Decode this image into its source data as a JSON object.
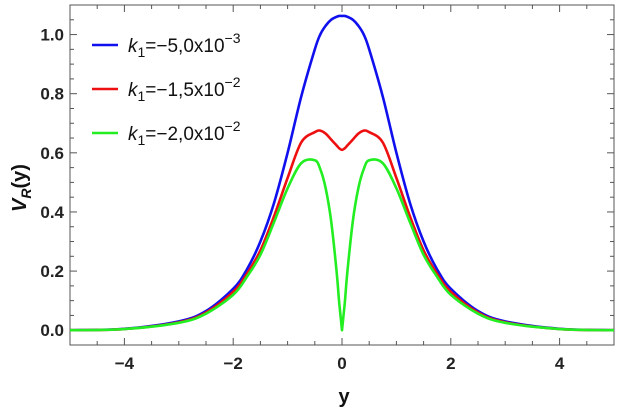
{
  "chart_data": {
    "type": "line",
    "xlabel": "y",
    "ylabel_main": "V",
    "ylabel_sub": "R",
    "ylabel_arg": "(y)",
    "xlim": [
      -5,
      5
    ],
    "ylim": [
      -0.05,
      1.1
    ],
    "xticks": [
      -4,
      -2,
      0,
      2,
      4
    ],
    "xtick_labels": [
      "−4",
      "−2",
      "0",
      "2",
      "4"
    ],
    "yticks": [
      0.0,
      0.2,
      0.4,
      0.6,
      0.8,
      1.0
    ],
    "ytick_labels": [
      "0.0",
      "0.2",
      "0.4",
      "0.6",
      "0.8",
      "1.0"
    ],
    "legend_placement": "top-left",
    "x": [
      -5.0,
      -4.0,
      -3.0,
      -2.5,
      -2.0,
      -1.75,
      -1.5,
      -1.25,
      -1.0,
      -0.75,
      -0.5,
      -0.4,
      -0.3,
      -0.2,
      -0.1,
      -0.05,
      0.0,
      0.05,
      0.1,
      0.2,
      0.3,
      0.4,
      0.5,
      0.75,
      1.0,
      1.25,
      1.5,
      1.75,
      2.0,
      2.5,
      3.0,
      4.0,
      5.0
    ],
    "series": [
      {
        "legend_var": "k",
        "legend_sub": "1",
        "legend_value": "=−5,0x10",
        "legend_exp": "−3",
        "color": "#1010ee",
        "values": [
          0.0,
          0.005,
          0.03,
          0.065,
          0.14,
          0.205,
          0.3,
          0.43,
          0.6,
          0.79,
          0.95,
          1.0,
          1.03,
          1.05,
          1.06,
          1.063,
          1.063,
          1.063,
          1.06,
          1.05,
          1.03,
          1.0,
          0.95,
          0.79,
          0.6,
          0.43,
          0.3,
          0.205,
          0.14,
          0.065,
          0.03,
          0.005,
          0.0
        ]
      },
      {
        "legend_var": "k",
        "legend_sub": "1",
        "legend_value": "=−1,5x10",
        "legend_exp": "−2",
        "color": "#ee1010",
        "values": [
          0.0,
          0.004,
          0.027,
          0.06,
          0.13,
          0.19,
          0.27,
          0.385,
          0.515,
          0.635,
          0.67,
          0.675,
          0.665,
          0.645,
          0.625,
          0.615,
          0.61,
          0.615,
          0.625,
          0.645,
          0.665,
          0.675,
          0.67,
          0.635,
          0.515,
          0.385,
          0.27,
          0.19,
          0.13,
          0.06,
          0.027,
          0.004,
          0.0
        ]
      },
      {
        "legend_var": "k",
        "legend_sub": "1",
        "legend_value": "=−2,0x10",
        "legend_exp": "−2",
        "color": "#22ee22",
        "values": [
          0.0,
          0.004,
          0.025,
          0.056,
          0.12,
          0.18,
          0.255,
          0.365,
          0.48,
          0.565,
          0.575,
          0.545,
          0.48,
          0.37,
          0.2,
          0.09,
          0.0,
          0.09,
          0.2,
          0.37,
          0.48,
          0.545,
          0.575,
          0.565,
          0.48,
          0.365,
          0.255,
          0.18,
          0.12,
          0.056,
          0.025,
          0.004,
          0.0
        ]
      }
    ]
  }
}
